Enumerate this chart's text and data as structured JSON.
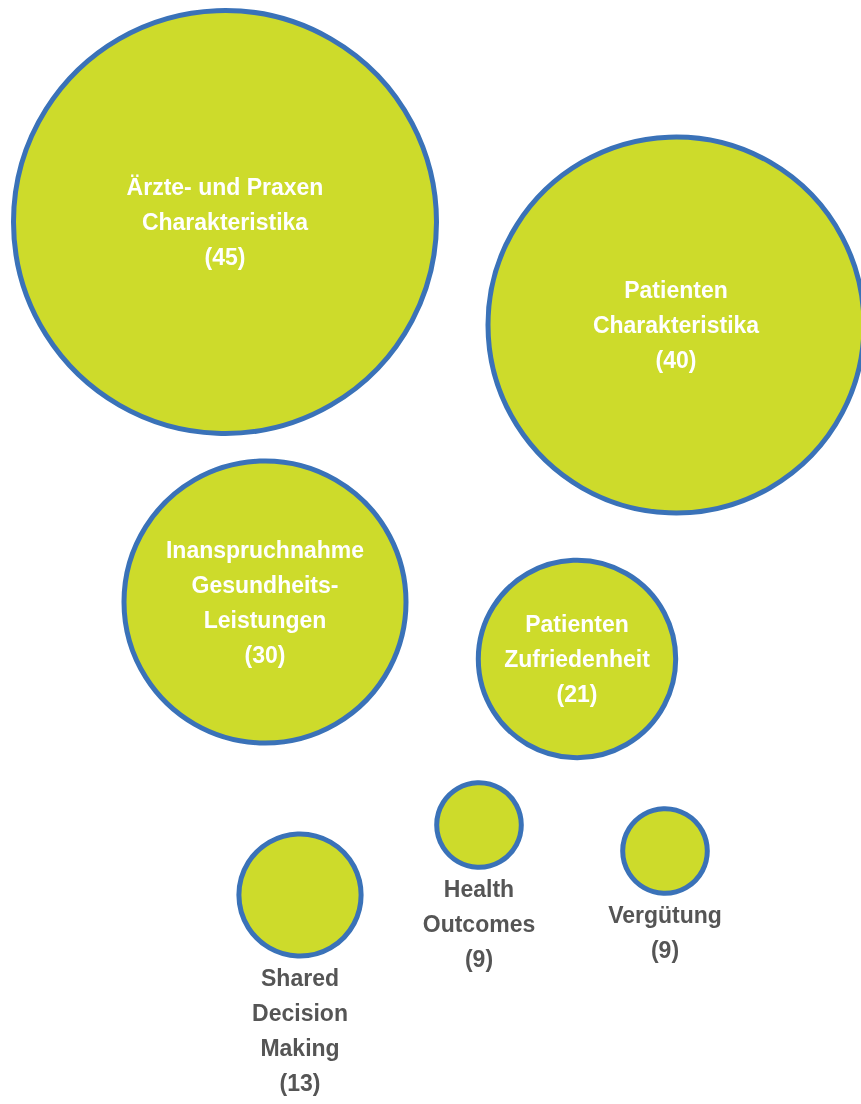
{
  "chart_data": {
    "type": "other",
    "categories": [
      "Ärzte- und Praxen Charakteristika",
      "Patienten Charakteristika",
      "Inanspruchnahme Gesundheits-Leistungen",
      "Patienten Zufriedenheit",
      "Shared Decision Making",
      "Health Outcomes",
      "Vergütung"
    ],
    "values": [
      45,
      40,
      30,
      21,
      13,
      9,
      9
    ],
    "color": "#cddb2b",
    "value_labels": [
      "(45)",
      "(40)",
      "(30)",
      "(21)",
      "(13)",
      "(9)",
      "(9)"
    ]
  }
}
